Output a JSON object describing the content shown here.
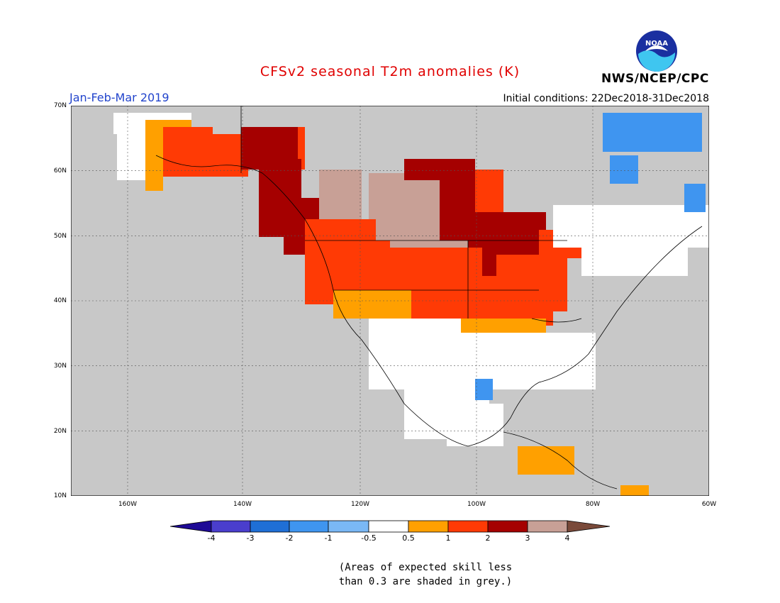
{
  "title": "CFSv2 seasonal T2m anomalies (K)",
  "period": "Jan-Feb-Mar 2019",
  "initial_conditions": "Initial conditions: 22Dec2018-31Dec2018",
  "organization": "NWS/NCEP/CPC",
  "logo_text": "NOAA",
  "map": {
    "lon_range": [
      -172,
      -60
    ],
    "lat_range": [
      10,
      70
    ],
    "lat_labels": [
      "70N",
      "60N",
      "50N",
      "40N",
      "30N",
      "20N",
      "10N"
    ],
    "lon_labels": [
      "160W",
      "140W",
      "120W",
      "100W",
      "80W",
      "60W"
    ]
  },
  "colorbar": {
    "tick_labels": [
      "-4",
      "-3",
      "-2",
      "-1",
      "-0.5",
      "0.5",
      "1",
      "2",
      "3",
      "4"
    ],
    "colors": [
      "#1e0a96",
      "#4a3ecd",
      "#1f6fd6",
      "#3f95f0",
      "#7ab8f5",
      "#ffffff",
      "#ffa000",
      "#ff3a05",
      "#a50000",
      "#c8a096",
      "#7a4a3a"
    ]
  },
  "note_line1": "(Areas of expected skill less",
  "note_line2": "than 0.3 are shaded in grey.)",
  "icons": {
    "logo": "noaa-logo-icon"
  }
}
